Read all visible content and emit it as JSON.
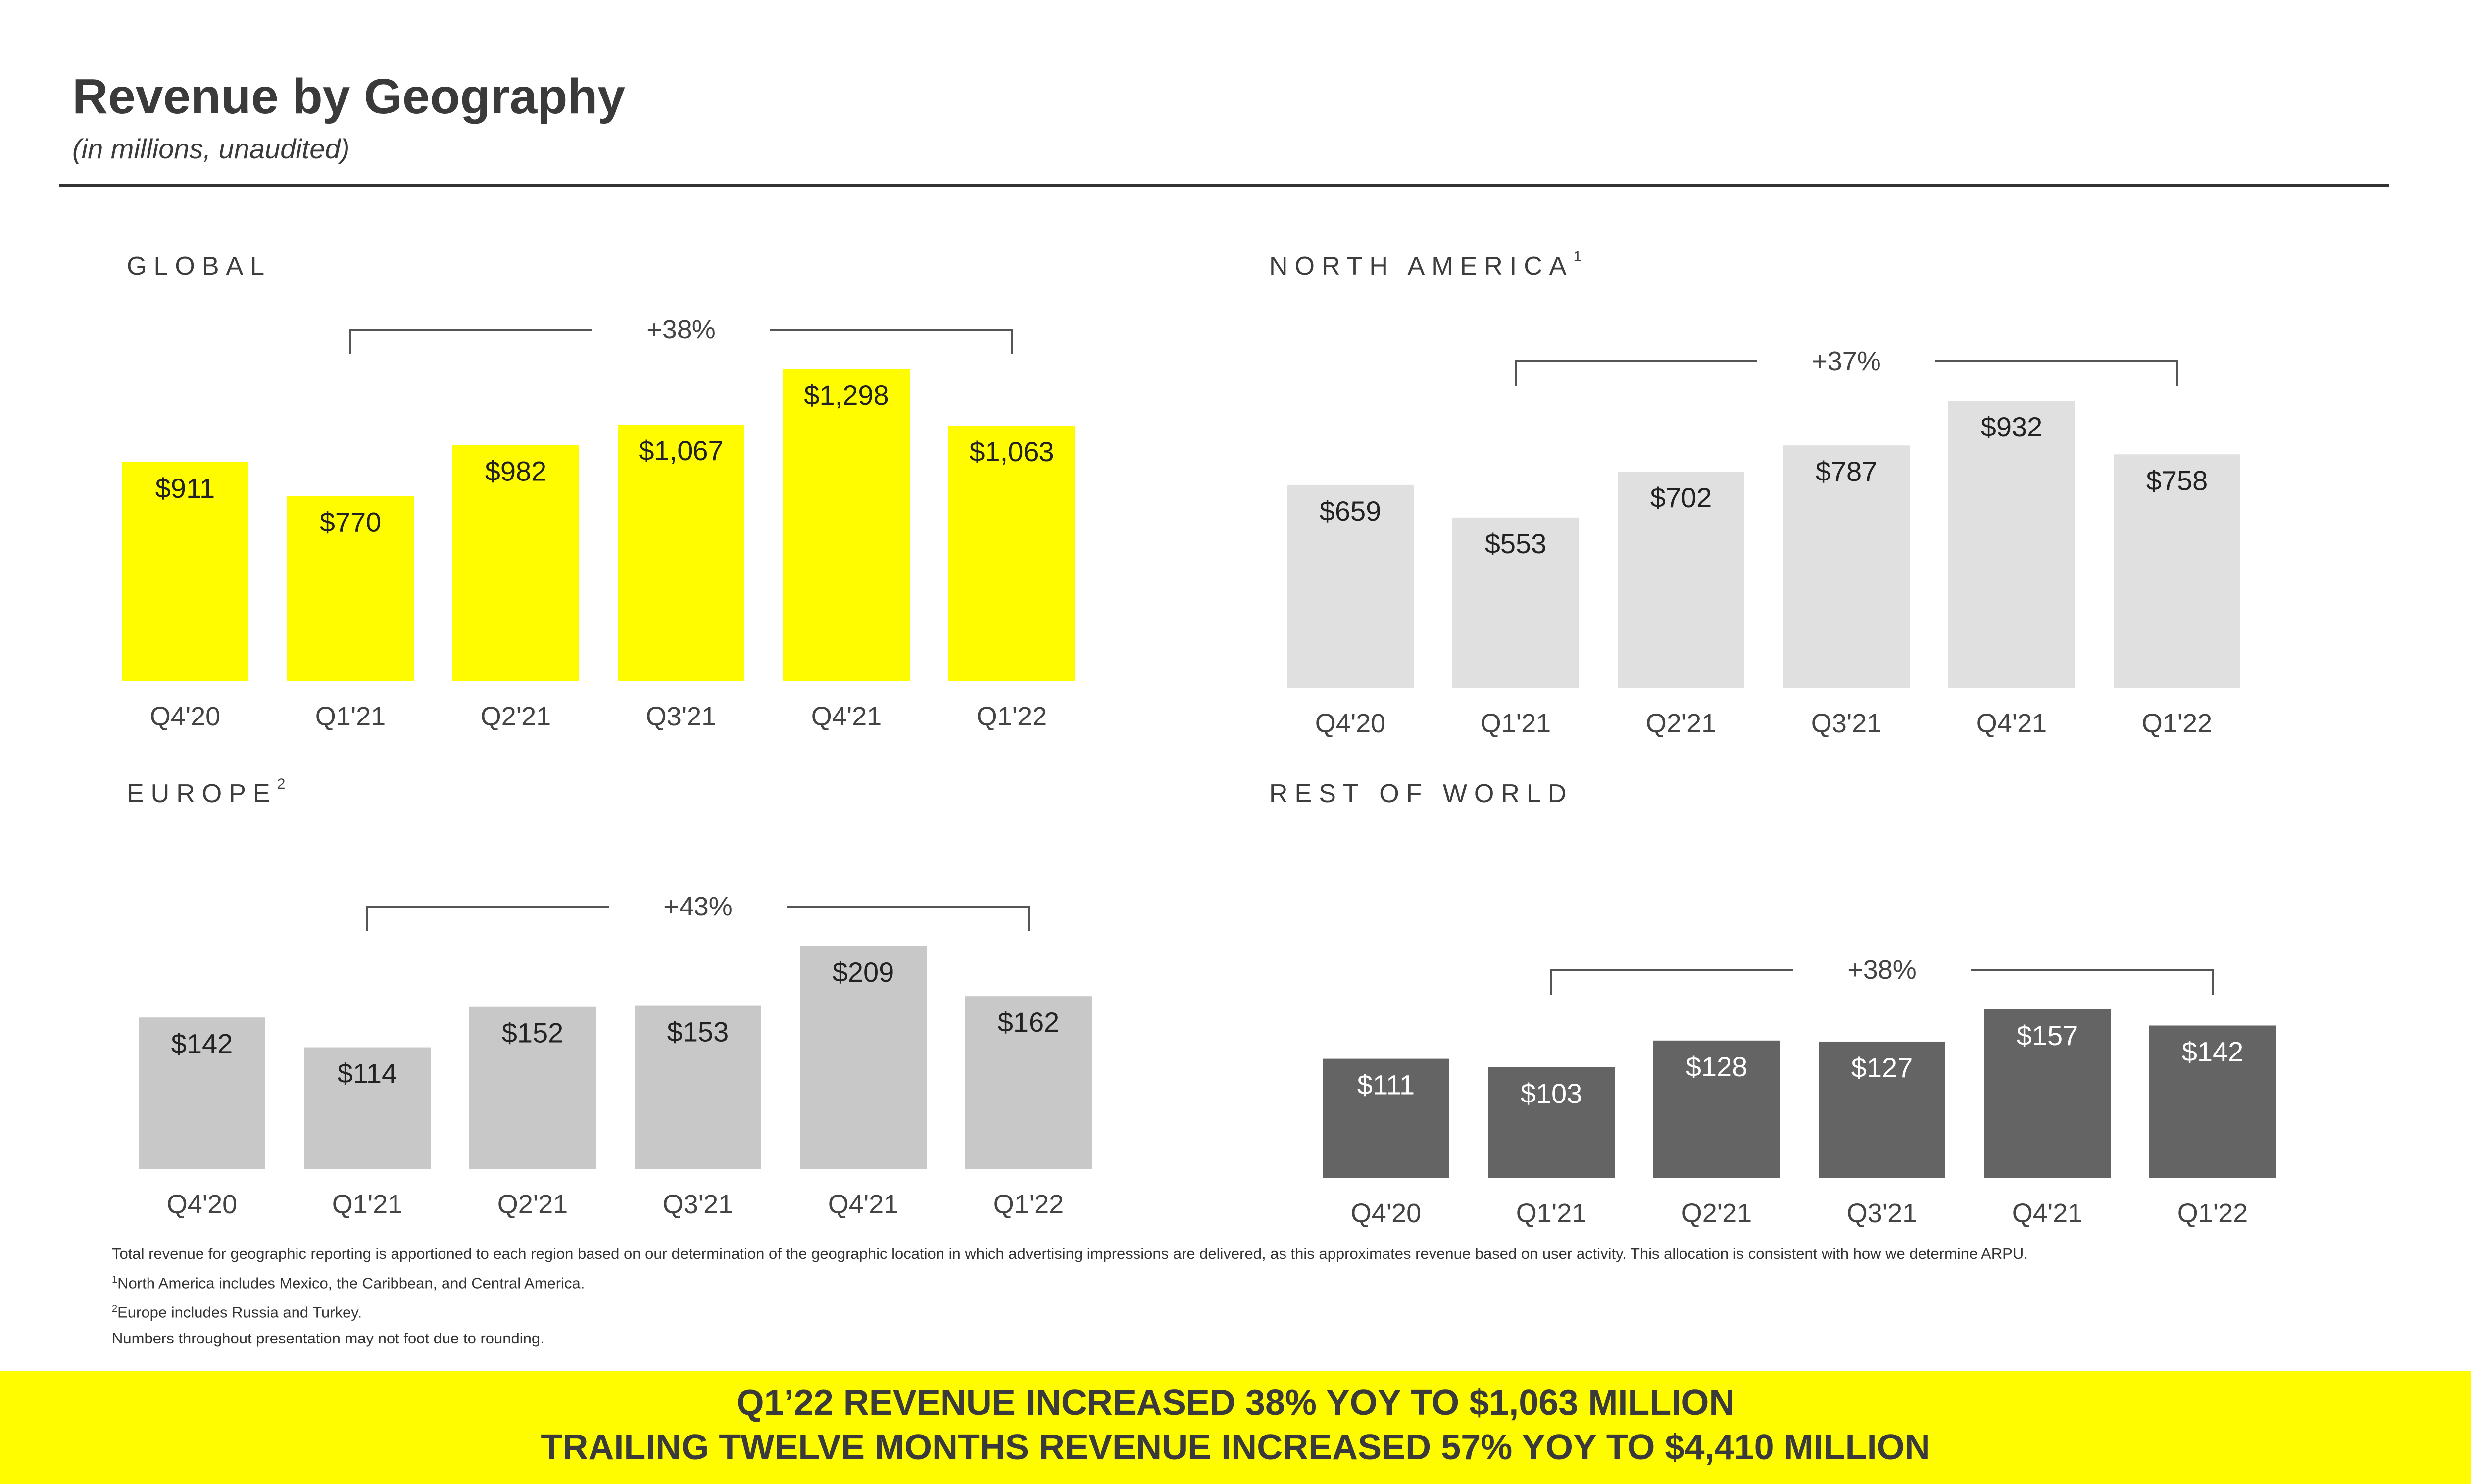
{
  "header": {
    "title": "Revenue by Geography",
    "subtitle": "(in millions, unaudited)"
  },
  "chart_data": [
    {
      "type": "bar",
      "title": "GLOBAL",
      "footnote_marker": "",
      "categories": [
        "Q4'20",
        "Q1'21",
        "Q2'21",
        "Q3'21",
        "Q4'21",
        "Q1'22"
      ],
      "values": [
        911,
        770,
        982,
        1067,
        1298,
        1063
      ],
      "value_labels": [
        "$911",
        "$770",
        "$982",
        "$1,067",
        "$1,298",
        "$1,063"
      ],
      "growth": "+38%",
      "bar_color": "#fffc00",
      "label_color": "#222222"
    },
    {
      "type": "bar",
      "title": "NORTH AMERICA",
      "footnote_marker": "1",
      "categories": [
        "Q4'20",
        "Q1'21",
        "Q2'21",
        "Q3'21",
        "Q4'21",
        "Q1'22"
      ],
      "values": [
        659,
        553,
        702,
        787,
        932,
        758
      ],
      "value_labels": [
        "$659",
        "$553",
        "$702",
        "$787",
        "$932",
        "$758"
      ],
      "growth": "+37%",
      "bar_color": "#e0e0e0",
      "label_color": "#222222"
    },
    {
      "type": "bar",
      "title": "EUROPE",
      "footnote_marker": "2",
      "categories": [
        "Q4'20",
        "Q1'21",
        "Q2'21",
        "Q3'21",
        "Q4'21",
        "Q1'22"
      ],
      "values": [
        142,
        114,
        152,
        153,
        209,
        162
      ],
      "value_labels": [
        "$142",
        "$114",
        "$152",
        "$153",
        "$209",
        "$162"
      ],
      "growth": "+43%",
      "bar_color": "#c8c8c8",
      "label_color": "#222222"
    },
    {
      "type": "bar",
      "title": "REST OF WORLD",
      "footnote_marker": "",
      "categories": [
        "Q4'20",
        "Q1'21",
        "Q2'21",
        "Q3'21",
        "Q4'21",
        "Q1'22"
      ],
      "values": [
        111,
        103,
        128,
        127,
        157,
        142
      ],
      "value_labels": [
        "$111",
        "$103",
        "$128",
        "$127",
        "$157",
        "$142"
      ],
      "growth": "+38%",
      "bar_color": "#646464",
      "label_color": "#ffffff"
    }
  ],
  "footnotes": {
    "main": "Total revenue for geographic reporting is apportioned to each region based on our determination of the geographic location in which advertising impressions are delivered, as this approximates revenue based on user activity.  This allocation is consistent with how we determine ARPU.",
    "note1_marker": "1",
    "note1": "North America includes Mexico, the Caribbean, and Central America.",
    "note2_marker": "2",
    "note2": "Europe includes Russia and Turkey.",
    "note3": "Numbers throughout presentation may not foot due to rounding."
  },
  "banner": {
    "line1": "Q1’22 REVENUE INCREASED 38% YOY TO $1,063 MILLION",
    "line2": "TRAILING TWELVE MONTHS REVENUE INCREASED 57% YOY TO $4,410 MILLION"
  }
}
